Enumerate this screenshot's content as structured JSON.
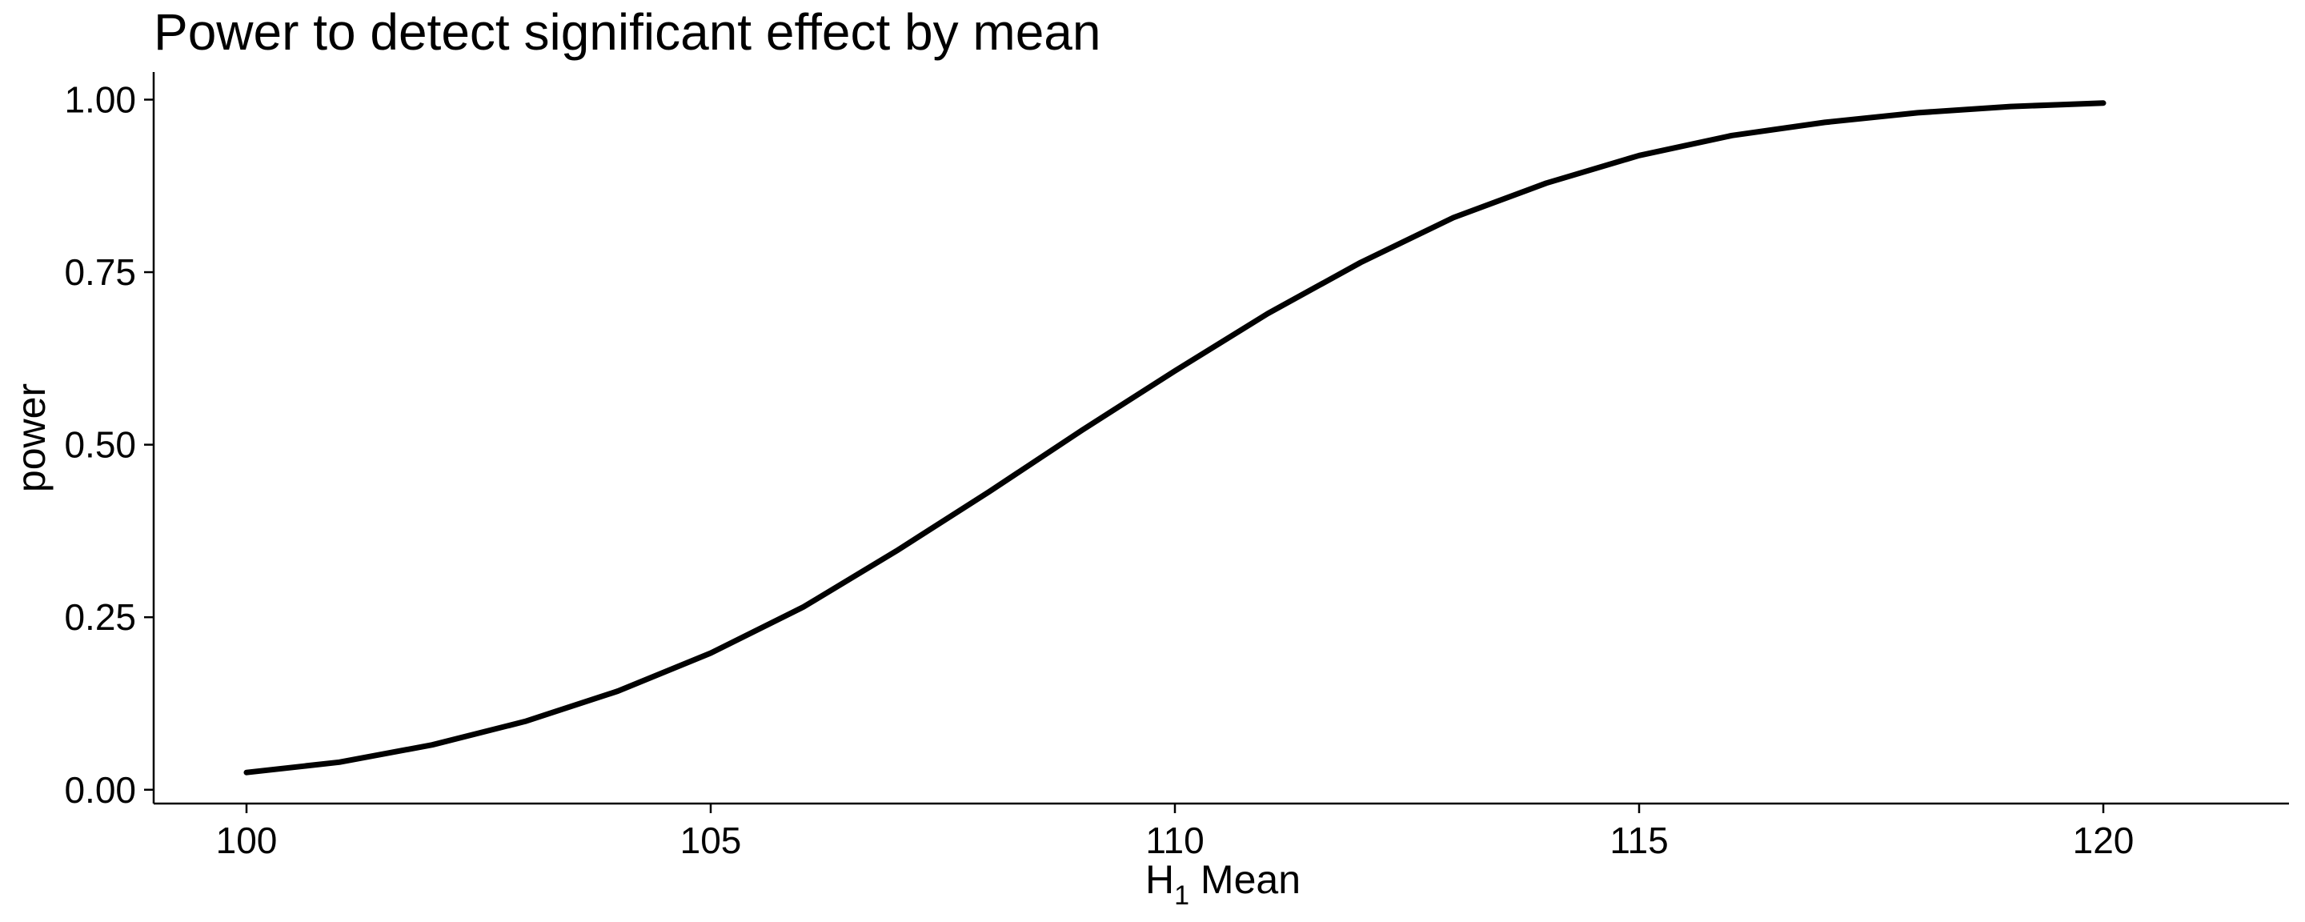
{
  "chart_data": {
    "type": "line",
    "title": "Power to detect significant effect by mean",
    "xlabel": {
      "main": "H",
      "subscript": "1",
      "rest": " Mean"
    },
    "ylabel": "power",
    "xlim": [
      99,
      122
    ],
    "ylim": [
      -0.02,
      1.04
    ],
    "x_ticks": [
      100,
      105,
      110,
      115,
      120
    ],
    "x_tick_labels": [
      "100",
      "105",
      "110",
      "115",
      "120"
    ],
    "y_ticks": [
      0,
      0.25,
      0.5,
      0.75,
      1.0
    ],
    "y_tick_labels": [
      "0.00",
      "0.25",
      "0.50",
      "0.75",
      "1.00"
    ],
    "grid": false,
    "series": [
      {
        "color": "#000000",
        "x": [
          100,
          101,
          102,
          103,
          104,
          105,
          106,
          107,
          108,
          109,
          110,
          111,
          112,
          113,
          114,
          115,
          116,
          117,
          118,
          119,
          120
        ],
        "y": [
          0.025,
          0.04,
          0.065,
          0.099,
          0.143,
          0.198,
          0.265,
          0.346,
          0.432,
          0.521,
          0.607,
          0.69,
          0.764,
          0.829,
          0.879,
          0.919,
          0.948,
          0.967,
          0.981,
          0.99,
          0.995
        ]
      }
    ]
  }
}
